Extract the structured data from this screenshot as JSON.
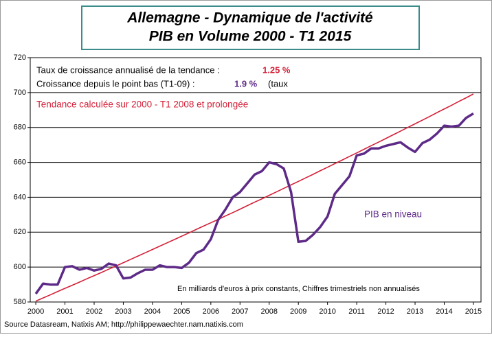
{
  "chart_data": {
    "type": "line",
    "title": [
      "Allemagne - Dynamique de l'activité",
      "PIB en Volume 2000 - T1 2015"
    ],
    "annotations": {
      "trend_rate_label": "Taux de croissance annualisé de la tendance :",
      "trend_rate_value": "1.25 %",
      "recovery_label": "Croissance depuis le point bas (T1-09) :",
      "recovery_value": "1.9 %",
      "recovery_suffix": "(taux",
      "units_note": "En milliards d'euros à prix constants, Chiffres trimestriels non annualisés",
      "source": "Source Datasream, Natixis AM;  http://philippewaechter.nam.natixis.com"
    },
    "x": [
      2000,
      2000.25,
      2000.5,
      2000.75,
      2001,
      2001.25,
      2001.5,
      2001.75,
      2002,
      2002.25,
      2002.5,
      2002.75,
      2003,
      2003.25,
      2003.5,
      2003.75,
      2004,
      2004.25,
      2004.5,
      2004.75,
      2005,
      2005.25,
      2005.5,
      2005.75,
      2006,
      2006.25,
      2006.5,
      2006.75,
      2007,
      2007.25,
      2007.5,
      2007.75,
      2008,
      2008.25,
      2008.5,
      2008.75,
      2009,
      2009.25,
      2009.5,
      2009.75,
      2010,
      2010.25,
      2010.5,
      2010.75,
      2011,
      2011.25,
      2011.5,
      2011.75,
      2012,
      2012.25,
      2012.5,
      2012.75,
      2013,
      2013.25,
      2013.5,
      2013.75,
      2014,
      2014.25,
      2014.5,
      2014.75,
      2015
    ],
    "series": [
      {
        "name": "PIB en niveau",
        "color": "#5e2a88",
        "values": [
          584.7,
          590.5,
          590,
          590,
          600,
          600.5,
          598.5,
          599.5,
          598,
          599,
          602,
          601,
          593.5,
          594,
          596.5,
          598.5,
          598.5,
          601,
          600,
          600,
          599.5,
          602.5,
          608,
          610,
          616,
          627,
          633,
          640,
          643,
          648,
          653,
          655,
          660,
          659,
          656.5,
          643,
          614.5,
          615,
          618.5,
          623,
          629,
          642,
          647,
          652,
          664,
          665,
          668,
          668,
          669.5,
          670.5,
          671.5,
          668.5,
          666,
          671,
          673,
          676.5,
          681,
          680.5,
          681,
          685.5,
          688
        ]
      },
      {
        "name": "Tendance calculée sur 2000 - T1 2008 et prolongée",
        "color": "#d42038",
        "values": [
          580.5,
          582.3,
          584.1,
          586.0,
          587.8,
          589.6,
          591.4,
          593.3,
          595.1,
          596.9,
          598.8,
          600.6,
          602.5,
          604.4,
          606.3,
          608.2,
          610.1,
          612.0,
          613.9,
          615.8,
          617.7,
          619.6,
          621.6,
          623.5,
          625.4,
          627.3,
          629.3,
          631.2,
          633.2,
          635.2,
          637.2,
          639.1,
          641.1,
          643.1,
          645.1,
          647.1,
          649.1,
          651.1,
          653.1,
          655.2,
          657.2,
          659.3,
          661.3,
          663.4,
          665.4,
          667.5,
          669.6,
          671.6,
          673.7,
          675.8,
          677.9,
          680.0,
          682.1,
          684.2,
          686.3,
          688.5,
          690.6,
          692.7,
          694.9,
          697.0,
          699.2
        ]
      }
    ],
    "xlim": [
      1999.81,
      2015.26
    ],
    "xticks": [
      2000,
      2001,
      2002,
      2003,
      2004,
      2005,
      2006,
      2007,
      2008,
      2009,
      2010,
      2011,
      2012,
      2013,
      2014,
      2015
    ],
    "ylim": [
      580,
      720
    ],
    "yticks": [
      580,
      600,
      620,
      640,
      660,
      680,
      700,
      720
    ],
    "grid": true
  }
}
